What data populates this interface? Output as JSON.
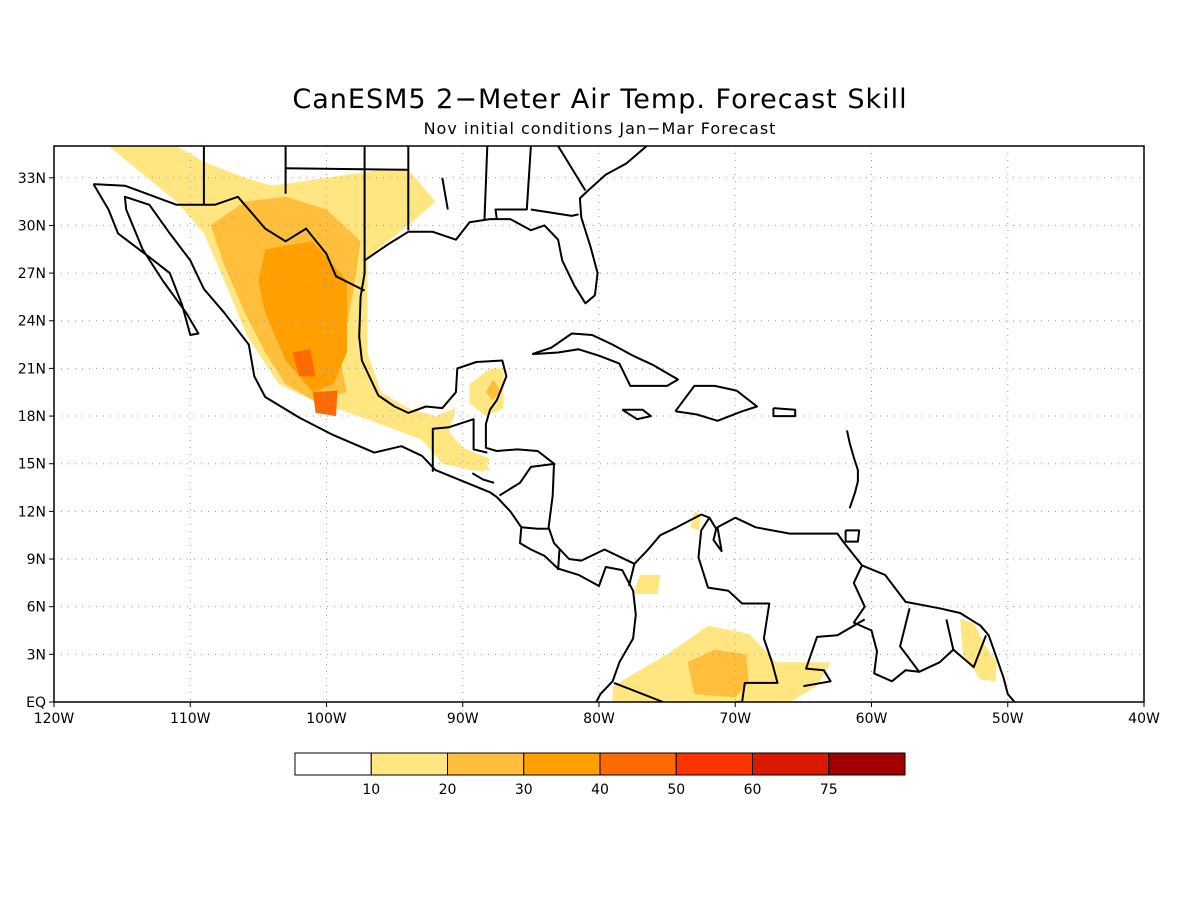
{
  "title": "CanESM5 2−Meter Air Temp. Forecast Skill",
  "subtitle": "Nov initial conditions  Jan−Mar Forecast",
  "chart_data": {
    "type": "heatmap",
    "lon_range": [
      -120,
      -40
    ],
    "lat_range": [
      0,
      35
    ],
    "grid": true,
    "x_ticks": [
      "120W",
      "110W",
      "100W",
      "90W",
      "80W",
      "70W",
      "60W",
      "50W",
      "40W"
    ],
    "y_ticks": [
      "EQ",
      "3N",
      "6N",
      "9N",
      "12N",
      "15N",
      "18N",
      "21N",
      "24N",
      "27N",
      "30N",
      "33N"
    ],
    "colorbar": {
      "labels": [
        "10",
        "20",
        "30",
        "40",
        "50",
        "60",
        "75"
      ],
      "colors": [
        "#ffffff",
        "#ffe680",
        "#ffbe3c",
        "#ffa000",
        "#ff6a00",
        "#ff3300",
        "#d91a00",
        "#a00000"
      ]
    },
    "regions": [
      {
        "name": "",
        "level": 1,
        "lonlat": [
          [
            -116,
            35
          ],
          [
            -111,
            35
          ],
          [
            -109,
            34
          ],
          [
            -106,
            33
          ],
          [
            -104,
            32.5
          ],
          [
            -100,
            33
          ],
          [
            -96,
            33.5
          ],
          [
            -94,
            33.5
          ],
          [
            -92,
            31.5
          ],
          [
            -94,
            30
          ],
          [
            -97,
            28
          ],
          [
            -97,
            25
          ],
          [
            -97,
            22
          ],
          [
            -96,
            19.5
          ],
          [
            -94,
            18.5
          ],
          [
            -92,
            18
          ],
          [
            -90.5,
            18.5
          ],
          [
            -91,
            17
          ],
          [
            -90,
            16
          ],
          [
            -88,
            15.3
          ],
          [
            -88.5,
            14.5
          ],
          [
            -91.5,
            15
          ],
          [
            -93,
            16.5
          ],
          [
            -97,
            17.8
          ],
          [
            -101,
            19
          ],
          [
            -103.5,
            20
          ],
          [
            -105.8,
            23
          ],
          [
            -107.5,
            26.5
          ],
          [
            -109,
            29.5
          ],
          [
            -111,
            31.5
          ]
        ]
      },
      {
        "name": "",
        "level": 2,
        "lonlat": [
          [
            -108.5,
            30
          ],
          [
            -106,
            31.5
          ],
          [
            -103,
            31.8
          ],
          [
            -100,
            31
          ],
          [
            -97.5,
            29
          ],
          [
            -98,
            26
          ],
          [
            -99,
            21.5
          ],
          [
            -98.5,
            19.5
          ],
          [
            -101,
            19
          ],
          [
            -103,
            20
          ],
          [
            -104.5,
            22
          ],
          [
            -106,
            24.5
          ],
          [
            -107.5,
            27.5
          ]
        ]
      },
      {
        "name": "",
        "level": 3,
        "lonlat": [
          [
            -104.5,
            28.5
          ],
          [
            -101,
            29
          ],
          [
            -98.5,
            26.5
          ],
          [
            -98.5,
            22
          ],
          [
            -99.5,
            20
          ],
          [
            -101,
            19.5
          ],
          [
            -103,
            21.5
          ],
          [
            -104.5,
            24.5
          ],
          [
            -105,
            26.5
          ]
        ]
      },
      {
        "name": "",
        "level": 4,
        "lonlat": [
          [
            -102.5,
            22
          ],
          [
            -101.2,
            22.2
          ],
          [
            -100.8,
            20.5
          ],
          [
            -102,
            20.5
          ]
        ]
      },
      {
        "name": "",
        "level": 4,
        "lonlat": [
          [
            -101,
            19.5
          ],
          [
            -99.2,
            19.6
          ],
          [
            -99.3,
            18
          ],
          [
            -100.8,
            18.2
          ]
        ]
      },
      {
        "name": "",
        "level": 1,
        "lonlat": [
          [
            -88,
            21
          ],
          [
            -87,
            21
          ],
          [
            -87,
            18.5
          ],
          [
            -88.3,
            18
          ],
          [
            -89.5,
            18.8
          ],
          [
            -89.5,
            20
          ]
        ]
      },
      {
        "name": "",
        "level": 2,
        "lonlat": [
          [
            -87.8,
            20.3
          ],
          [
            -87.2,
            19.6
          ],
          [
            -87.8,
            19
          ],
          [
            -88.3,
            19.5
          ]
        ]
      },
      {
        "name": "",
        "level": 1,
        "lonlat": [
          [
            -90.5,
            15.5
          ],
          [
            -88.5,
            15.4
          ],
          [
            -88,
            14.6
          ],
          [
            -89.5,
            14.6
          ],
          [
            -90.7,
            15
          ]
        ]
      },
      {
        "name": "",
        "level": 1,
        "lonlat": [
          [
            -77,
            8
          ],
          [
            -75.5,
            8
          ],
          [
            -75.7,
            6.8
          ],
          [
            -77.5,
            6.8
          ]
        ]
      },
      {
        "name": "",
        "level": 1,
        "lonlat": [
          [
            -73,
            12
          ],
          [
            -72.5,
            11.8
          ],
          [
            -72.7,
            10.8
          ],
          [
            -73.3,
            11
          ]
        ]
      },
      {
        "name": "",
        "level": 1,
        "lonlat": [
          [
            -79,
            1
          ],
          [
            -75,
            3
          ],
          [
            -72,
            4.8
          ],
          [
            -69,
            4.3
          ],
          [
            -67,
            2.5
          ],
          [
            -63,
            2.5
          ],
          [
            -64,
            1
          ],
          [
            -66,
            0
          ],
          [
            -79,
            0
          ]
        ]
      },
      {
        "name": "",
        "level": 2,
        "lonlat": [
          [
            -73.5,
            2.5
          ],
          [
            -71.5,
            3.3
          ],
          [
            -69.2,
            3
          ],
          [
            -69,
            1.2
          ],
          [
            -70,
            0.3
          ],
          [
            -73,
            0.5
          ]
        ]
      },
      {
        "name": "",
        "level": 1,
        "lonlat": [
          [
            -53.5,
            5.2
          ],
          [
            -52.5,
            5
          ],
          [
            -51.7,
            3.6
          ],
          [
            -50.8,
            2.5
          ],
          [
            -50.9,
            1.3
          ],
          [
            -52,
            1.4
          ],
          [
            -53.3,
            3
          ]
        ]
      }
    ]
  }
}
